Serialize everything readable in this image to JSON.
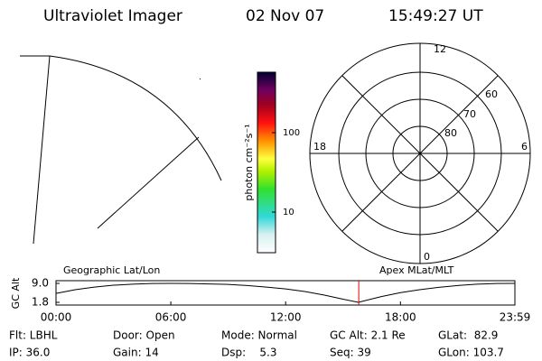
{
  "header": {
    "title": "Ultraviolet Imager",
    "date": "02 Nov 07",
    "time": "15:49:27 UT"
  },
  "colorbar": {
    "label": "photon cm⁻²s⁻¹",
    "ticks": [
      {
        "value": 100,
        "label": "100"
      },
      {
        "value": 10,
        "label": "10"
      }
    ]
  },
  "polar": {
    "labels": [
      "12",
      "6",
      "0",
      "18",
      "60",
      "70",
      "80"
    ]
  },
  "chart_data": {
    "type": "line",
    "title": "Geographic Lat/Lon",
    "subtitle": "Apex MLat/MLT",
    "y_label": "GC Alt",
    "x": [
      0,
      1,
      2,
      3,
      4,
      5,
      6,
      7,
      8,
      9,
      10,
      11,
      12,
      13,
      14,
      15,
      15.8,
      16.5,
      17,
      18,
      19,
      20,
      21,
      22,
      23,
      23.98
    ],
    "series": [
      {
        "name": "GC Alt",
        "color": "#000000",
        "values": [
          5.2,
          6.6,
          7.6,
          8.3,
          8.7,
          8.95,
          9.0,
          8.95,
          8.8,
          8.6,
          8.2,
          7.6,
          6.9,
          5.9,
          4.6,
          3.0,
          1.8,
          3.1,
          4.0,
          5.5,
          6.6,
          7.5,
          8.2,
          8.7,
          8.95,
          9.0
        ]
      }
    ],
    "marker_x": 15.82,
    "marker_color": "#e00000",
    "xlim": [
      0,
      23.98
    ],
    "ylim": [
      1.8,
      9.0
    ],
    "xticks": [
      {
        "value": 0,
        "label": "00:00"
      },
      {
        "value": 6,
        "label": "06:00"
      },
      {
        "value": 12,
        "label": "12:00"
      },
      {
        "value": 18,
        "label": "18:00"
      },
      {
        "value": 23.98,
        "label": "23:59"
      }
    ],
    "yticks": [
      {
        "value": 9.0,
        "label": "9.0"
      },
      {
        "value": 1.8,
        "label": "1.8"
      }
    ]
  },
  "footer": {
    "rows": [
      [
        "Flt: LBHL",
        "Door: Open",
        "Mode: Normal",
        "GC Alt: 2.1 Re",
        "GLat:  82.9"
      ],
      [
        "IP: 36.0",
        "Gain: 14",
        "Dsp:    5.3",
        "Seq: 39",
        "GLon: 103.7"
      ]
    ]
  }
}
